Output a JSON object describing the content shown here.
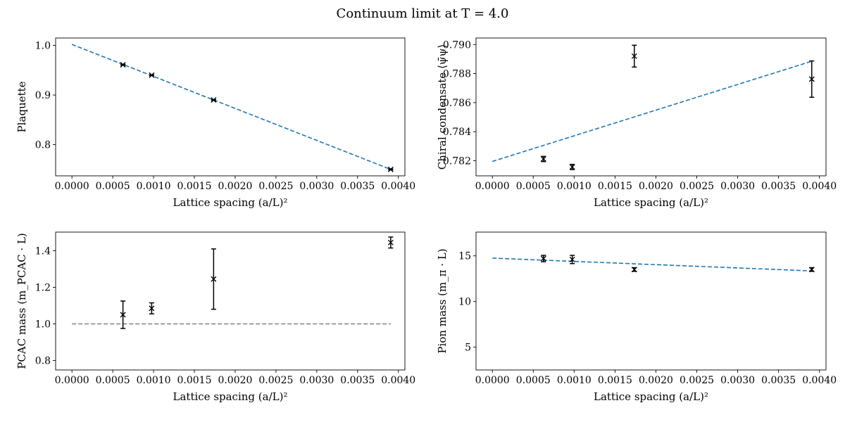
{
  "figure": {
    "title": "Continuum limit at T = 4.0"
  },
  "chart_data": [
    {
      "type": "scatter",
      "panel": "top-left",
      "xlabel": "Lattice spacing (a/L)²",
      "ylabel": "Plaquette",
      "xlim": [
        -0.0002,
        0.00408
      ],
      "ylim": [
        0.737,
        1.015
      ],
      "xticks": [
        "0.0000",
        "0.0005",
        "0.0010",
        "0.0015",
        "0.0020",
        "0.0025",
        "0.0030",
        "0.0035",
        "0.0040"
      ],
      "xtick_values": [
        0,
        0.0005,
        0.001,
        0.0015,
        0.002,
        0.0025,
        0.003,
        0.0035,
        0.004
      ],
      "yticks": [
        "0.8",
        "0.9",
        "1.0"
      ],
      "ytick_values": [
        0.8,
        0.9,
        1.0
      ],
      "points": [
        {
          "x": 0.000625,
          "y": 0.961,
          "err": 0.001
        },
        {
          "x": 0.000977,
          "y": 0.94,
          "err": 0.001
        },
        {
          "x": 0.001736,
          "y": 0.89,
          "err": 0.001
        },
        {
          "x": 0.003906,
          "y": 0.75,
          "err": 0.001
        }
      ],
      "fit": {
        "x": [
          0,
          0.003906
        ],
        "y": [
          1.002,
          0.75
        ],
        "color": "#1f77b4"
      }
    },
    {
      "type": "scatter",
      "panel": "top-right",
      "xlabel": "Lattice spacing (a/L)²",
      "ylabel": "Chiral condensate ⟨ψ̄ψ⟩",
      "xlim": [
        -0.0002,
        0.00408
      ],
      "ylim": [
        0.78096,
        0.79045
      ],
      "xticks": [
        "0.0000",
        "0.0005",
        "0.0010",
        "0.0015",
        "0.0020",
        "0.0025",
        "0.0030",
        "0.0035",
        "0.0040"
      ],
      "xtick_values": [
        0,
        0.0005,
        0.001,
        0.0015,
        0.002,
        0.0025,
        0.003,
        0.0035,
        0.004
      ],
      "yticks": [
        "0.782",
        "0.784",
        "0.786",
        "0.788",
        "0.790"
      ],
      "ytick_values": [
        0.782,
        0.784,
        0.786,
        0.788,
        0.79
      ],
      "points": [
        {
          "x": 0.000625,
          "y": 0.78212,
          "err": 0.00018
        },
        {
          "x": 0.000977,
          "y": 0.78157,
          "err": 0.00018
        },
        {
          "x": 0.001736,
          "y": 0.7892,
          "err": 0.00075
        },
        {
          "x": 0.003906,
          "y": 0.78762,
          "err": 0.00125
        }
      ],
      "fit": {
        "x": [
          0,
          0.003906
        ],
        "y": [
          0.78195,
          0.78885
        ],
        "color": "#1f77b4"
      }
    },
    {
      "type": "scatter",
      "panel": "bottom-left",
      "xlabel": "Lattice spacing (a/L)²",
      "ylabel": "PCAC mass (m_PCAC · L)",
      "xlim": [
        -0.0002,
        0.00408
      ],
      "ylim": [
        0.748,
        1.502
      ],
      "xticks": [
        "0.0000",
        "0.0005",
        "0.0010",
        "0.0015",
        "0.0020",
        "0.0025",
        "0.0030",
        "0.0035",
        "0.0040"
      ],
      "xtick_values": [
        0,
        0.0005,
        0.001,
        0.0015,
        0.002,
        0.0025,
        0.003,
        0.0035,
        0.004
      ],
      "yticks": [
        "0.8",
        "1.0",
        "1.2",
        "1.4"
      ],
      "ytick_values": [
        0.8,
        1.0,
        1.2,
        1.4
      ],
      "points": [
        {
          "x": 0.000625,
          "y": 1.05,
          "err": 0.075
        },
        {
          "x": 0.000977,
          "y": 1.085,
          "err": 0.03
        },
        {
          "x": 0.001736,
          "y": 1.245,
          "err": 0.165
        },
        {
          "x": 0.003906,
          "y": 1.445,
          "err": 0.03
        }
      ],
      "reference_line": {
        "x": [
          0,
          0.003906
        ],
        "y": [
          1.0,
          1.0
        ],
        "color": "#808080"
      }
    },
    {
      "type": "scatter",
      "panel": "bottom-right",
      "xlabel": "Lattice spacing (a/L)²",
      "ylabel": "Pion mass (m_π · L)",
      "xlim": [
        -0.0002,
        0.00408
      ],
      "ylim": [
        2.5,
        17.6
      ],
      "xticks": [
        "0.0000",
        "0.0005",
        "0.0010",
        "0.0015",
        "0.0020",
        "0.0025",
        "0.0030",
        "0.0035",
        "0.0040"
      ],
      "xtick_values": [
        0,
        0.0005,
        0.001,
        0.0015,
        0.002,
        0.0025,
        0.003,
        0.0035,
        0.004
      ],
      "yticks": [
        "5",
        "10",
        "15"
      ],
      "ytick_values": [
        5,
        10,
        15
      ],
      "points": [
        {
          "x": 0.000625,
          "y": 14.7,
          "err": 0.35
        },
        {
          "x": 0.000977,
          "y": 14.6,
          "err": 0.45
        },
        {
          "x": 0.001736,
          "y": 13.5,
          "err": 0.2
        },
        {
          "x": 0.003906,
          "y": 13.5,
          "err": 0.2
        }
      ],
      "fit": {
        "x": [
          0,
          0.003906
        ],
        "y": [
          14.75,
          13.35
        ],
        "color": "#1f77b4"
      }
    }
  ]
}
